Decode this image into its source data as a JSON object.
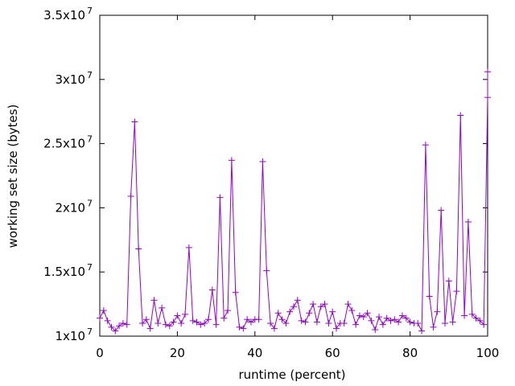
{
  "chart_data": {
    "type": "line",
    "title": "",
    "xlabel": "runtime (percent)",
    "ylabel": "working set size (bytes)",
    "xlim": [
      0,
      100
    ],
    "ylim": [
      10000000,
      35000000
    ],
    "x_ticks": [
      {
        "value": 0,
        "label": "0"
      },
      {
        "value": 20,
        "label": "20"
      },
      {
        "value": 40,
        "label": "40"
      },
      {
        "value": 60,
        "label": "60"
      },
      {
        "value": 80,
        "label": "80"
      },
      {
        "value": 100,
        "label": "100"
      }
    ],
    "y_ticks": [
      {
        "value": 10000000,
        "mantissa": "1x10",
        "exp": "7"
      },
      {
        "value": 15000000,
        "mantissa": "1.5x10",
        "exp": "7"
      },
      {
        "value": 20000000,
        "mantissa": "2x10",
        "exp": "7"
      },
      {
        "value": 25000000,
        "mantissa": "2.5x10",
        "exp": "7"
      },
      {
        "value": 30000000,
        "mantissa": "3x10",
        "exp": "7"
      },
      {
        "value": 35000000,
        "mantissa": "3.5x10",
        "exp": "7"
      }
    ],
    "grid": false,
    "legend": "none",
    "series_color": "#9400d3",
    "series": [
      {
        "marker": "plus",
        "points": [
          [
            0,
            11400000
          ],
          [
            1,
            12000000
          ],
          [
            2,
            11200000
          ],
          [
            3,
            10700000
          ],
          [
            4,
            10400000
          ],
          [
            5,
            10800000
          ],
          [
            6,
            11000000
          ],
          [
            7,
            10900000
          ],
          [
            8,
            20900000
          ],
          [
            9,
            26700000
          ],
          [
            10,
            16800000
          ],
          [
            11,
            11000000
          ],
          [
            12,
            11300000
          ],
          [
            13,
            10600000
          ],
          [
            14,
            12800000
          ],
          [
            15,
            11000000
          ],
          [
            16,
            12200000
          ],
          [
            17,
            10900000
          ],
          [
            18,
            10800000
          ],
          [
            19,
            11100000
          ],
          [
            20,
            11600000
          ],
          [
            21,
            11000000
          ],
          [
            22,
            11700000
          ],
          [
            23,
            16900000
          ],
          [
            24,
            11200000
          ],
          [
            25,
            11100000
          ],
          [
            26,
            10900000
          ],
          [
            27,
            11000000
          ],
          [
            28,
            11300000
          ],
          [
            29,
            13600000
          ],
          [
            30,
            10900000
          ],
          [
            31,
            20800000
          ],
          [
            32,
            11400000
          ],
          [
            33,
            12000000
          ],
          [
            34,
            23700000
          ],
          [
            35,
            13400000
          ],
          [
            36,
            10700000
          ],
          [
            37,
            10600000
          ],
          [
            38,
            11300000
          ],
          [
            39,
            11100000
          ],
          [
            40,
            11300000
          ],
          [
            41,
            11300000
          ],
          [
            42,
            23600000
          ],
          [
            43,
            15100000
          ],
          [
            44,
            11000000
          ],
          [
            45,
            10600000
          ],
          [
            46,
            11800000
          ],
          [
            47,
            11300000
          ],
          [
            48,
            11000000
          ],
          [
            49,
            11900000
          ],
          [
            50,
            12300000
          ],
          [
            51,
            12800000
          ],
          [
            52,
            11200000
          ],
          [
            53,
            11100000
          ],
          [
            54,
            11800000
          ],
          [
            55,
            12500000
          ],
          [
            56,
            11100000
          ],
          [
            57,
            12300000
          ],
          [
            58,
            12500000
          ],
          [
            59,
            11000000
          ],
          [
            60,
            11900000
          ],
          [
            61,
            10600000
          ],
          [
            62,
            11000000
          ],
          [
            63,
            11000000
          ],
          [
            64,
            12500000
          ],
          [
            65,
            12000000
          ],
          [
            66,
            10900000
          ],
          [
            67,
            11600000
          ],
          [
            68,
            11500000
          ],
          [
            69,
            11800000
          ],
          [
            70,
            11200000
          ],
          [
            71,
            10500000
          ],
          [
            72,
            11500000
          ],
          [
            73,
            10900000
          ],
          [
            74,
            11400000
          ],
          [
            75,
            11200000
          ],
          [
            76,
            11300000
          ],
          [
            77,
            11100000
          ],
          [
            78,
            11600000
          ],
          [
            79,
            11400000
          ],
          [
            80,
            11100000
          ],
          [
            81,
            11000000
          ],
          [
            82,
            11000000
          ],
          [
            83,
            10400000
          ],
          [
            84,
            24900000
          ],
          [
            85,
            13100000
          ],
          [
            86,
            10700000
          ],
          [
            87,
            11900000
          ],
          [
            88,
            19800000
          ],
          [
            89,
            11000000
          ],
          [
            90,
            14300000
          ],
          [
            91,
            11100000
          ],
          [
            92,
            13500000
          ],
          [
            93,
            27200000
          ],
          [
            94,
            11600000
          ],
          [
            95,
            18900000
          ],
          [
            96,
            11700000
          ],
          [
            97,
            11400000
          ],
          [
            98,
            11200000
          ],
          [
            99,
            10900000
          ],
          [
            100,
            28600000
          ],
          [
            100,
            30600000
          ]
        ]
      }
    ]
  }
}
